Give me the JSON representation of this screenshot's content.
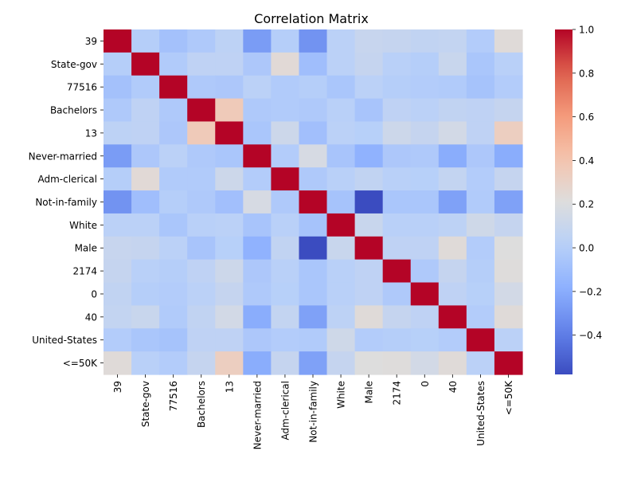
{
  "chart_data": {
    "type": "heatmap",
    "title": "Correlation Matrix",
    "labels": [
      "39",
      "State-gov",
      "77516",
      "Bachelors",
      "13",
      "Never-married",
      "Adm-clerical",
      "Not-in-family",
      "White",
      "Male",
      "2174",
      "0",
      "40",
      "United-States",
      "<=50K"
    ],
    "values": [
      [
        1.0,
        0.0,
        -0.08,
        -0.03,
        0.04,
        -0.27,
        0.0,
        -0.31,
        0.03,
        0.09,
        0.08,
        0.06,
        0.07,
        -0.01,
        0.23
      ],
      [
        0.0,
        1.0,
        -0.02,
        0.05,
        0.05,
        -0.04,
        0.24,
        -0.1,
        0.03,
        0.08,
        0.02,
        0.0,
        0.1,
        -0.05,
        0.02
      ],
      [
        -0.08,
        -0.02,
        1.0,
        -0.03,
        -0.04,
        0.03,
        -0.02,
        0.0,
        -0.05,
        0.03,
        0.0,
        -0.01,
        -0.02,
        -0.07,
        -0.01
      ],
      [
        -0.03,
        0.05,
        -0.03,
        1.0,
        0.36,
        -0.03,
        -0.02,
        -0.03,
        0.02,
        -0.06,
        0.05,
        0.03,
        0.06,
        0.05,
        0.08
      ],
      [
        0.04,
        0.05,
        -0.04,
        0.36,
        1.0,
        -0.05,
        0.12,
        -0.09,
        0.03,
        0.01,
        0.12,
        0.08,
        0.15,
        0.05,
        0.33
      ],
      [
        -0.27,
        -0.04,
        0.03,
        -0.03,
        -0.05,
        1.0,
        -0.01,
        0.17,
        -0.06,
        -0.17,
        -0.04,
        -0.03,
        -0.2,
        -0.04,
        -0.2
      ],
      [
        0.0,
        0.24,
        -0.02,
        -0.02,
        0.12,
        -0.01,
        1.0,
        -0.03,
        0.02,
        0.06,
        0.02,
        0.01,
        0.07,
        -0.01,
        0.08
      ],
      [
        -0.31,
        -0.1,
        0.0,
        -0.03,
        -0.09,
        0.17,
        -0.03,
        1.0,
        -0.07,
        -0.58,
        -0.05,
        -0.05,
        -0.25,
        -0.02,
        -0.25
      ],
      [
        0.03,
        0.03,
        -0.05,
        0.02,
        0.03,
        -0.06,
        0.02,
        -0.07,
        1.0,
        0.1,
        0.02,
        0.02,
        0.04,
        0.13,
        0.08
      ],
      [
        0.09,
        0.08,
        0.03,
        -0.06,
        0.01,
        -0.17,
        0.06,
        -0.58,
        0.1,
        1.0,
        0.05,
        0.05,
        0.23,
        -0.01,
        0.21
      ],
      [
        0.08,
        0.02,
        0.0,
        0.05,
        0.12,
        -0.04,
        0.02,
        -0.05,
        0.02,
        0.05,
        1.0,
        -0.03,
        0.08,
        0.0,
        0.22
      ],
      [
        0.06,
        0.0,
        -0.01,
        0.03,
        0.08,
        -0.03,
        0.01,
        -0.05,
        0.02,
        0.05,
        -0.03,
        1.0,
        0.05,
        0.01,
        0.15
      ],
      [
        0.07,
        0.1,
        -0.02,
        0.06,
        0.15,
        -0.2,
        0.07,
        -0.25,
        0.04,
        0.23,
        0.08,
        0.05,
        1.0,
        -0.01,
        0.23
      ],
      [
        -0.01,
        -0.05,
        -0.07,
        0.05,
        0.05,
        -0.04,
        -0.01,
        -0.02,
        0.13,
        -0.01,
        0.0,
        0.01,
        -0.01,
        1.0,
        0.03
      ],
      [
        0.23,
        0.02,
        -0.01,
        0.08,
        0.33,
        -0.2,
        0.08,
        -0.25,
        0.08,
        0.21,
        0.22,
        0.15,
        0.23,
        0.03,
        1.0
      ]
    ],
    "colormap": "coolwarm",
    "vmin": -0.58,
    "vmax": 1.0,
    "colorbar_ticks": [
      "1.0",
      "0.8",
      "0.6",
      "0.4",
      "0.2",
      "0.0",
      "−0.2",
      "−0.4"
    ],
    "colorbar_tick_values": [
      1.0,
      0.8,
      0.6,
      0.4,
      0.2,
      0.0,
      -0.2,
      -0.4
    ]
  }
}
